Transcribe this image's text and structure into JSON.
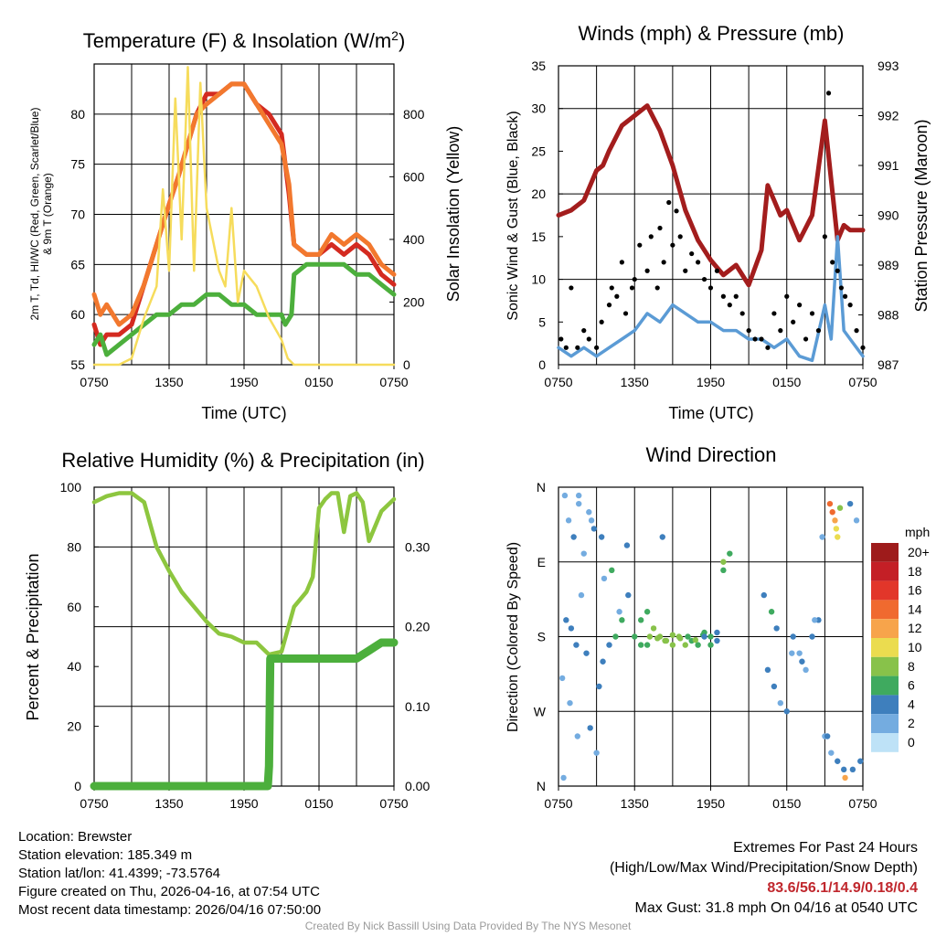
{
  "colors": {
    "red": "#d42a20",
    "orange": "#f2782e",
    "green": "#4caf3c",
    "yellow": "#f6dc5c",
    "blue": "#5b9bd5",
    "maroon": "#a31d1d",
    "black": "#000000",
    "rh": "#8dc63f",
    "grid": "#000000",
    "extreme_text": "#c0272d",
    "credit": "#9a9a9a"
  },
  "chart_data": [
    {
      "id": "temp",
      "type": "line",
      "title": "Temperature (F) & Insolation (W/m2)",
      "title_main": "Temperature (F) & Insolation (W/m",
      "title_sup": "2",
      "title_end": ")",
      "xlabel": "Time (UTC)",
      "ylabel_lines": [
        "2m T, Td, HI/WC (Red, Green, Scarlet/Blue)",
        "& 9m T (Orange)"
      ],
      "y2label": "Solar Insolation (Yellow)",
      "x_ticks": [
        "0750",
        "1350",
        "1950",
        "0150",
        "0750"
      ],
      "xlim": [
        0,
        24
      ],
      "ylim": [
        55,
        85
      ],
      "y_ticks": [
        55,
        60,
        65,
        70,
        75,
        80
      ],
      "y2lim": [
        0,
        960
      ],
      "y2_ticks": [
        0,
        200,
        400,
        600,
        800
      ],
      "series": [
        {
          "name": "2m T",
          "color": "red",
          "axis": "left",
          "x": [
            0,
            0.5,
            1,
            2,
            3,
            4,
            5,
            6,
            6.8,
            7.5,
            8.2,
            9,
            10,
            11,
            12,
            13,
            14,
            15,
            15.6,
            16,
            17,
            18,
            19,
            20,
            21,
            22,
            23,
            24
          ],
          "y": [
            59,
            57,
            58,
            58,
            59,
            63,
            67,
            71,
            74,
            77,
            80,
            82,
            82,
            83,
            83,
            81,
            80,
            78,
            72,
            67,
            66,
            66,
            67,
            66,
            67,
            66,
            64,
            63
          ]
        },
        {
          "name": "9m T",
          "color": "orange",
          "axis": "left",
          "x": [
            0,
            0.5,
            1,
            2,
            3,
            4,
            5,
            6,
            6.8,
            7.5,
            8.2,
            9,
            10,
            11,
            12,
            13,
            14,
            15,
            15.6,
            16,
            17,
            18,
            19,
            20,
            21,
            22,
            23,
            24
          ],
          "y": [
            62,
            60,
            61,
            59,
            60,
            63,
            67,
            71,
            74,
            77,
            80,
            81,
            82,
            83,
            83,
            81,
            79,
            77,
            73,
            67,
            66,
            66,
            68,
            67,
            68,
            67,
            65,
            64
          ]
        },
        {
          "name": "2m Td",
          "color": "green",
          "axis": "left",
          "x": [
            0,
            0.5,
            1,
            2,
            3,
            4,
            5,
            6,
            7,
            8,
            9,
            10,
            11,
            12,
            13,
            14,
            15,
            15.3,
            15.8,
            16,
            17,
            18,
            19,
            20,
            21,
            22,
            23,
            24
          ],
          "y": [
            57,
            58,
            56,
            57,
            58,
            59,
            60,
            60,
            61,
            61,
            62,
            62,
            61,
            61,
            60,
            60,
            60,
            59,
            60,
            64,
            65,
            65,
            65,
            65,
            64,
            64,
            63,
            62
          ]
        },
        {
          "name": "Solar",
          "color": "yellow",
          "axis": "right",
          "x": [
            0,
            1,
            2,
            3,
            4,
            5,
            5.5,
            6,
            6.5,
            7,
            7.5,
            8,
            8.5,
            9,
            9.5,
            10,
            10.5,
            11,
            11.5,
            12,
            13,
            14,
            15,
            15.5,
            16,
            24
          ],
          "y": [
            0,
            0,
            0,
            20,
            150,
            250,
            560,
            300,
            850,
            400,
            950,
            300,
            900,
            500,
            400,
            300,
            250,
            500,
            200,
            300,
            250,
            150,
            80,
            20,
            0,
            0
          ]
        }
      ]
    },
    {
      "id": "wind",
      "type": "line",
      "title": "Winds (mph) & Pressure (mb)",
      "xlabel": "Time (UTC)",
      "ylabel": "Sonic Wind & Gust (Blue, Black)",
      "y2label": "Station Pressure (Maroon)",
      "x_ticks": [
        "0750",
        "1350",
        "1950",
        "0150",
        "0750"
      ],
      "xlim": [
        0,
        24
      ],
      "ylim": [
        0,
        35
      ],
      "y_ticks": [
        0,
        5,
        10,
        15,
        20,
        25,
        30,
        35
      ],
      "y2lim": [
        987,
        993
      ],
      "y2_ticks": [
        987,
        988,
        989,
        990,
        991,
        992,
        993
      ],
      "series": [
        {
          "name": "Pressure",
          "color": "maroon",
          "axis": "right",
          "x": [
            0,
            1,
            2,
            3,
            3.5,
            4,
            5,
            6,
            7,
            8,
            9,
            10,
            11,
            12,
            13,
            14,
            15,
            16,
            16.5,
            17,
            17.5,
            18,
            19,
            20,
            21,
            22,
            22.5,
            23,
            24
          ],
          "y": [
            990,
            990.1,
            990.3,
            990.9,
            991,
            991.3,
            991.8,
            992,
            992.2,
            991.7,
            991,
            990.1,
            989.5,
            989.1,
            988.8,
            989,
            988.6,
            989.3,
            990.6,
            990.3,
            990,
            990.1,
            989.5,
            990,
            991.9,
            989.5,
            989.8,
            989.7,
            989.7
          ]
        },
        {
          "name": "Sonic Wind",
          "color": "blue",
          "axis": "left",
          "x": [
            0,
            1,
            2,
            3,
            4,
            5,
            6,
            7,
            8,
            9,
            10,
            11,
            12,
            13,
            14,
            15,
            16,
            17,
            18,
            19,
            20,
            21,
            21.5,
            22,
            22.5,
            23,
            24
          ],
          "y": [
            2,
            1,
            2,
            1,
            2,
            3,
            4,
            6,
            5,
            7,
            6,
            5,
            5,
            4,
            4,
            3,
            3,
            2,
            3,
            1,
            0.5,
            7,
            3,
            15,
            4,
            3,
            1
          ]
        },
        {
          "name": "Gust",
          "color": "black",
          "axis": "left",
          "style": "points",
          "x": [
            0.2,
            0.6,
            1,
            1.5,
            2,
            2.4,
            3,
            3.4,
            4,
            4.2,
            4.6,
            5,
            5.3,
            5.8,
            6,
            6.4,
            7,
            7.3,
            7.8,
            8,
            8.3,
            8.7,
            9,
            9.3,
            9.6,
            10,
            10.5,
            11,
            11.5,
            12,
            12.5,
            13,
            13.5,
            14,
            14.5,
            15,
            15.5,
            16,
            16.5,
            17,
            17.5,
            18,
            18.5,
            19,
            19.5,
            20,
            20.5,
            21,
            21.3,
            21.6,
            22,
            22.3,
            22.6,
            23,
            23.5,
            24
          ],
          "y": [
            3,
            2,
            9,
            2,
            4,
            3,
            2,
            5,
            7,
            9,
            8,
            12,
            6,
            9,
            10,
            14,
            11,
            15,
            9,
            16,
            12,
            19,
            14,
            18,
            15,
            11,
            13,
            12,
            10,
            9,
            11,
            8,
            7,
            8,
            6,
            4,
            3,
            3,
            2,
            6,
            4,
            8,
            5,
            7,
            3,
            6,
            4,
            15,
            31.8,
            12,
            11,
            9,
            8,
            7,
            4,
            2
          ]
        }
      ]
    },
    {
      "id": "rh",
      "type": "line",
      "title": "Relative Humidity (%) & Precipitation (in)",
      "ylabel": "Percent & Precipitation",
      "x_ticks": [
        "0750",
        "1350",
        "1950",
        "0150",
        "0750"
      ],
      "xlim": [
        0,
        24
      ],
      "ylim": [
        0,
        100
      ],
      "y_ticks": [
        0,
        20,
        40,
        60,
        80,
        100
      ],
      "y2lim": [
        0,
        0.375
      ],
      "y2_ticks": [
        "0.00",
        "0.10",
        "0.20",
        "0.30"
      ],
      "series": [
        {
          "name": "RH",
          "color": "rh",
          "axis": "left",
          "x": [
            0,
            1,
            2,
            3,
            4,
            5,
            6,
            7,
            8,
            9,
            10,
            11,
            12,
            13,
            14,
            15,
            16,
            17,
            17.5,
            18,
            18.5,
            19,
            19.5,
            20,
            20.5,
            21,
            21.5,
            22,
            23,
            24
          ],
          "y": [
            95,
            97,
            98,
            98,
            95,
            80,
            72,
            65,
            60,
            55,
            51,
            50,
            48,
            48,
            44,
            45,
            60,
            65,
            70,
            93,
            96,
            98,
            98,
            85,
            97,
            98,
            95,
            82,
            92,
            96
          ]
        },
        {
          "name": "Precipitation",
          "color": "green",
          "axis": "right",
          "x": [
            0,
            13.5,
            13.9,
            14,
            14.1,
            16,
            17,
            18,
            19,
            20,
            21,
            21.5,
            22,
            22.5,
            23,
            24
          ],
          "y": [
            0,
            0,
            0,
            0.025,
            0.16,
            0.16,
            0.16,
            0.16,
            0.16,
            0.16,
            0.16,
            0.165,
            0.17,
            0.175,
            0.18,
            0.18
          ]
        }
      ]
    },
    {
      "id": "dir",
      "type": "scatter",
      "title": "Wind Direction",
      "ylabel": "Direction (Colored By Speed)",
      "x_ticks": [
        "0750",
        "1350",
        "1950",
        "0150",
        "0750"
      ],
      "y_ticks": [
        "N",
        "W",
        "S",
        "E",
        "N"
      ],
      "xlim": [
        0,
        24
      ],
      "ylim": [
        0,
        360
      ],
      "legend_title": "mph",
      "legend_labels": [
        "20+",
        "18",
        "16",
        "14",
        "12",
        "10",
        "8",
        "6",
        "4",
        "2",
        "0"
      ],
      "legend_colors": [
        "#9e1b1b",
        "#c41f26",
        "#e2362a",
        "#f06a2f",
        "#f7a44b",
        "#ebdc4f",
        "#88c24a",
        "#3faa5f",
        "#3e7fbd",
        "#74ace0",
        "#bee2f7"
      ],
      "points": {
        "x": [
          0.5,
          0.8,
          1.2,
          1.6,
          2.0,
          2.4,
          2.8,
          0.6,
          1.0,
          1.4,
          1.8,
          2.2,
          0.3,
          0.9,
          1.5,
          2.5,
          3.0,
          3.5,
          4.0,
          4.5,
          5.0,
          5.5,
          6.0,
          6.5,
          7.0,
          7.5,
          8.0,
          8.5,
          9.0,
          9.5,
          10.0,
          10.5,
          11.0,
          11.5,
          12.0,
          12.5,
          13.0,
          7.2,
          7.8,
          8.4,
          9.0,
          9.6,
          10.2,
          10.8,
          11.4,
          6.5,
          7.0,
          8.2,
          5.4,
          4.8,
          3.6,
          3.2,
          11.5,
          12.0,
          12.5,
          13.0,
          13.5,
          16.5,
          17.0,
          17.5,
          18.0,
          18.5,
          19.0,
          19.5,
          20.0,
          20.5,
          21.0,
          21.5,
          22.0,
          22.5,
          23.0,
          23.5,
          21.4,
          21.6,
          21.8,
          22.0,
          21.9,
          22.2,
          16.2,
          16.8,
          17.2,
          18.4,
          19.2,
          20.2,
          20.8,
          21.2,
          22.6,
          23.2,
          23.8,
          4.2,
          3.4,
          2.6,
          1.6,
          0.4
        ],
        "y": [
          350,
          320,
          300,
          340,
          280,
          330,
          310,
          200,
          190,
          170,
          230,
          160,
          130,
          100,
          60,
          70,
          40,
          150,
          170,
          180,
          200,
          230,
          180,
          170,
          170,
          190,
          180,
          175,
          170,
          180,
          170,
          175,
          170,
          185,
          180,
          175,
          260,
          180,
          178,
          175,
          182,
          178,
          180,
          176,
          182,
          200,
          210,
          300,
          290,
          210,
          250,
          120,
          180,
          170,
          185,
          270,
          280,
          140,
          120,
          100,
          90,
          180,
          160,
          140,
          180,
          200,
          60,
          40,
          30,
          20,
          340,
          320,
          340,
          330,
          320,
          300,
          310,
          335,
          230,
          210,
          190,
          160,
          150,
          200,
          300,
          60,
          10,
          20,
          30,
          260,
          300,
          320,
          350,
          10
        ],
        "speed": [
          1,
          1,
          2,
          1,
          1,
          1,
          2,
          3,
          2,
          3,
          1,
          2,
          1,
          1,
          1,
          2,
          1,
          2,
          3,
          4,
          4,
          3,
          4,
          5,
          5,
          7,
          7,
          6,
          7,
          6,
          6,
          5,
          4,
          5,
          4,
          3,
          4,
          6,
          7,
          6,
          7,
          6,
          5,
          6,
          4,
          5,
          4,
          3,
          2,
          1,
          1,
          2,
          3,
          4,
          3,
          6,
          5,
          2,
          2,
          1,
          3,
          2,
          1,
          1,
          2,
          3,
          1,
          1,
          2,
          3,
          2,
          1,
          12,
          13,
          10,
          9,
          8,
          7,
          3,
          4,
          2,
          1,
          2,
          1,
          1,
          2,
          10,
          2,
          3,
          4,
          2,
          1,
          1,
          1
        ]
      }
    }
  ],
  "info": {
    "location": "Location: Brewster",
    "elevation": "Station elevation: 185.349 m",
    "latlon": "Station lat/lon: 41.4399; -73.5764",
    "created": "Figure created on Thu, 2026-04-16, at 07:54 UTC",
    "recent": "Most recent data timestamp: 2026/04/16 07:50:00"
  },
  "extremes": {
    "title": "Extremes For Past 24 Hours",
    "subtitle": "(High/Low/Max Wind/Precipitation/Snow Depth)",
    "values": "83.6/56.1/14.9/0.18/0.4",
    "max_gust": "Max Gust: 31.8 mph On 04/16 at 0540 UTC"
  },
  "credit": "Created By Nick Bassill Using Data Provided By The NYS Mesonet"
}
